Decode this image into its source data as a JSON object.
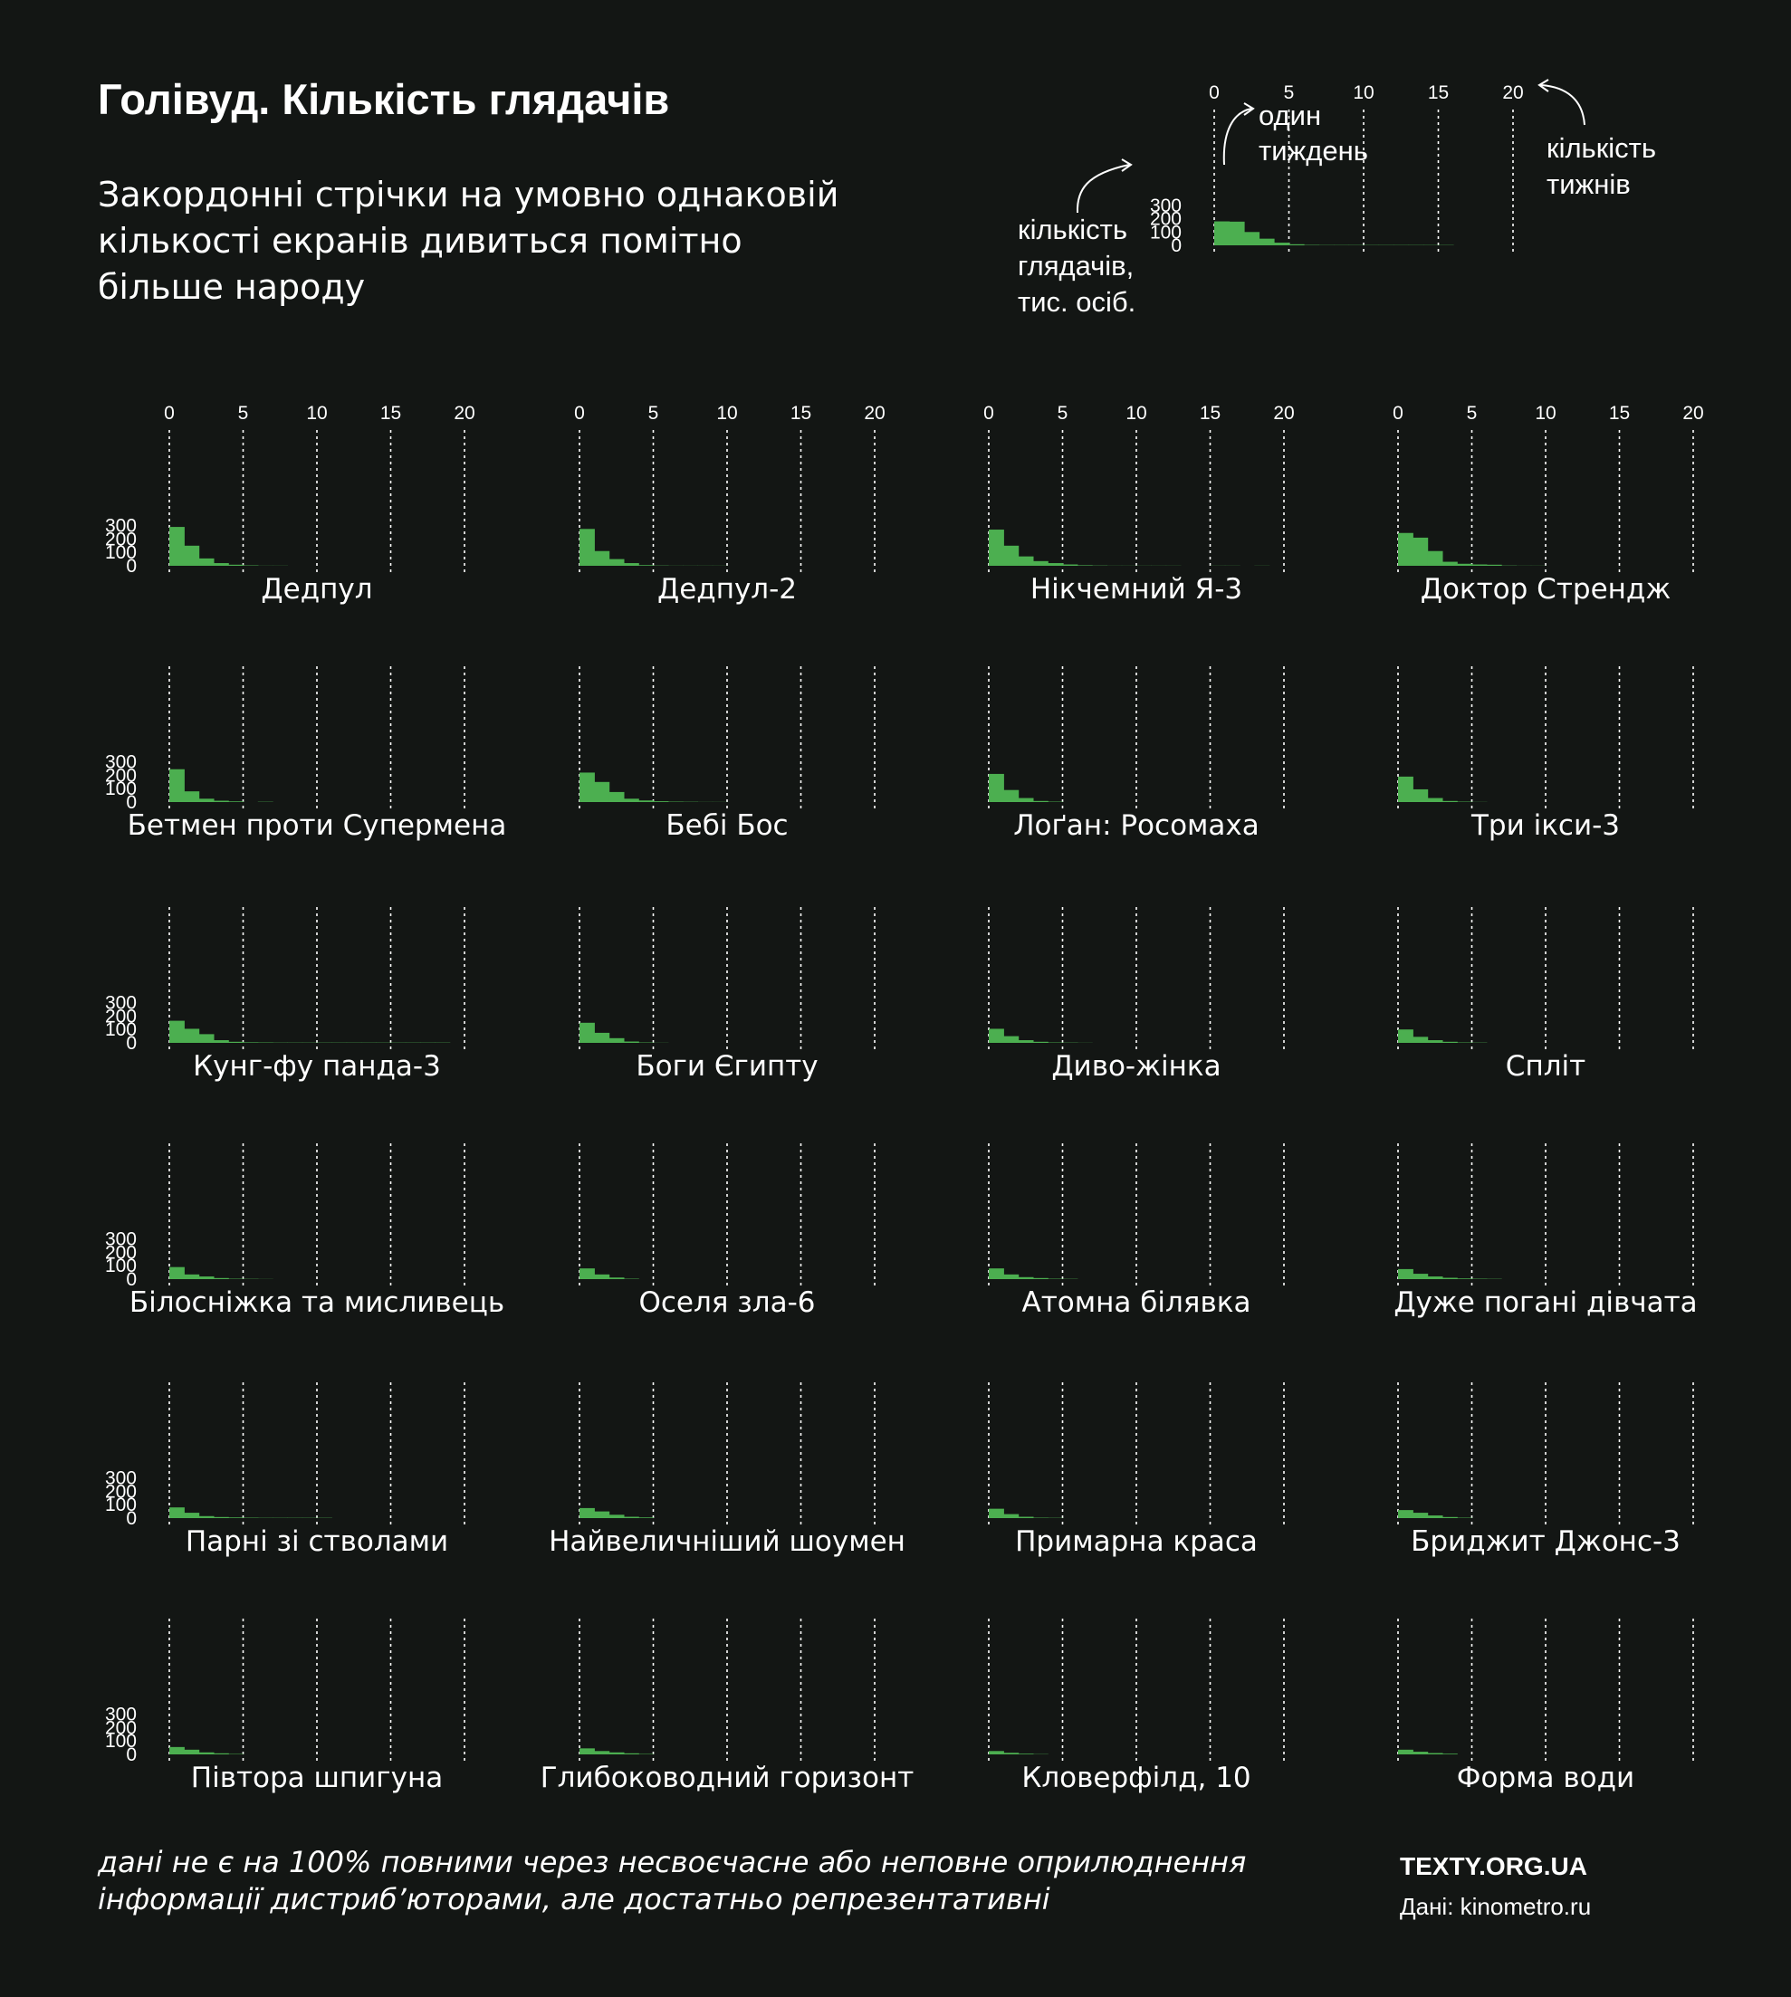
{
  "title": "Голівуд. Кількість глядачів",
  "subtitle": "Закордонні стрічки на умовно однаковій кількості екранів дивиться помітно більше народу",
  "subtitle_lines": [
    "Закордонні стрічки на умовно однаковій",
    "кількості екранів дивиться помітно",
    "більше народу"
  ],
  "legend": {
    "week_label": [
      "один",
      "тиждень"
    ],
    "weeks_count_label": [
      "кількість",
      "тижнів"
    ],
    "viewers_label": [
      "кількість",
      "глядачів,",
      "тис. осіб."
    ],
    "example_values": [
      180,
      178,
      100,
      50,
      20,
      8,
      3,
      2,
      2,
      2,
      2,
      2,
      2,
      2,
      2,
      2
    ]
  },
  "footnote": {
    "line1": "дані не є на 100% повними через несвоєчасне або неповне оприлюднення",
    "line2": "інформації дистриб’юторами, але достатньо репрезентативні"
  },
  "brand": "TEXTY.ORG.UA",
  "source": "Дані: kinometro.ru",
  "colors": {
    "background": "#131614",
    "bar": "#4caf50",
    "text": "#ffffff",
    "grid": "#ffffff"
  },
  "chart_data": {
    "type": "bar",
    "layout": "small-multiples",
    "x_ticks": [
      0,
      5,
      10,
      15,
      20
    ],
    "y_ticks": [
      0,
      100,
      200,
      300
    ],
    "xlim": [
      0,
      20
    ],
    "ylim": [
      0,
      300
    ],
    "grid": "vertical dotted lines at x ticks",
    "films": [
      {
        "name": "Дедпул",
        "values": [
          290,
          150,
          55,
          20,
          8,
          3,
          1,
          1
        ]
      },
      {
        "name": "Дедпул-2",
        "values": [
          275,
          110,
          50,
          20,
          5,
          2,
          1,
          1,
          1,
          1
        ]
      },
      {
        "name": "Нікчемний Я-3",
        "values": [
          270,
          150,
          70,
          35,
          20,
          10,
          4,
          2,
          1,
          1,
          1,
          1,
          1,
          0,
          0,
          1,
          1,
          0,
          1
        ]
      },
      {
        "name": "Доктор Стрендж",
        "values": [
          245,
          210,
          110,
          30,
          15,
          10,
          8,
          2,
          1,
          1
        ]
      },
      {
        "name": "Бетмен проти Супермена",
        "values": [
          245,
          80,
          25,
          10,
          5,
          0,
          2
        ]
      },
      {
        "name": "Бебі Бос",
        "values": [
          220,
          150,
          75,
          25,
          12,
          6,
          3,
          2,
          1,
          1
        ]
      },
      {
        "name": "Лоґан: Росомаха",
        "values": [
          210,
          90,
          30,
          8,
          3
        ]
      },
      {
        "name": "Три ікси-3",
        "values": [
          190,
          95,
          30,
          8,
          3,
          1
        ]
      },
      {
        "name": "Кунг-фу панда-3",
        "values": [
          165,
          105,
          65,
          20,
          8,
          4,
          3,
          2,
          2,
          2,
          2,
          2,
          2,
          2,
          2,
          2,
          2,
          2,
          2
        ]
      },
      {
        "name": "Боги Єгипту",
        "values": [
          150,
          75,
          35,
          10,
          3,
          1
        ]
      },
      {
        "name": "Диво-жінка",
        "values": [
          105,
          50,
          20,
          8,
          3,
          2,
          1
        ]
      },
      {
        "name": "Спліт",
        "values": [
          100,
          45,
          20,
          8,
          3,
          2
        ]
      },
      {
        "name": "Білосніжка та мисливець",
        "values": [
          90,
          35,
          20,
          8,
          3,
          2,
          1
        ]
      },
      {
        "name": "Оселя зла-6",
        "values": [
          80,
          35,
          12,
          3
        ]
      },
      {
        "name": "Атомна білявка",
        "values": [
          80,
          35,
          15,
          8,
          3,
          2
        ]
      },
      {
        "name": "Дуже погані дівчата",
        "values": [
          75,
          40,
          20,
          10,
          5,
          3,
          2
        ]
      },
      {
        "name": "Парні зі стволами",
        "values": [
          80,
          40,
          15,
          8,
          5,
          3,
          2,
          2,
          2,
          2,
          2
        ]
      },
      {
        "name": "Найвеличніший шоумен",
        "values": [
          75,
          50,
          25,
          10,
          5
        ]
      },
      {
        "name": "Примарна краса",
        "values": [
          70,
          30,
          10,
          3,
          2
        ]
      },
      {
        "name": "Бриджит Джонс-3",
        "values": [
          60,
          40,
          20,
          8,
          3
        ]
      },
      {
        "name": "Півтора шпигуна",
        "values": [
          55,
          35,
          15,
          8,
          3
        ]
      },
      {
        "name": "Глибоководний горизонт",
        "values": [
          45,
          25,
          15,
          8,
          3
        ]
      },
      {
        "name": "Кловерфілд, 10",
        "values": [
          25,
          12,
          5,
          2
        ]
      },
      {
        "name": "Форма води",
        "values": [
          35,
          20,
          10,
          5
        ]
      }
    ]
  }
}
